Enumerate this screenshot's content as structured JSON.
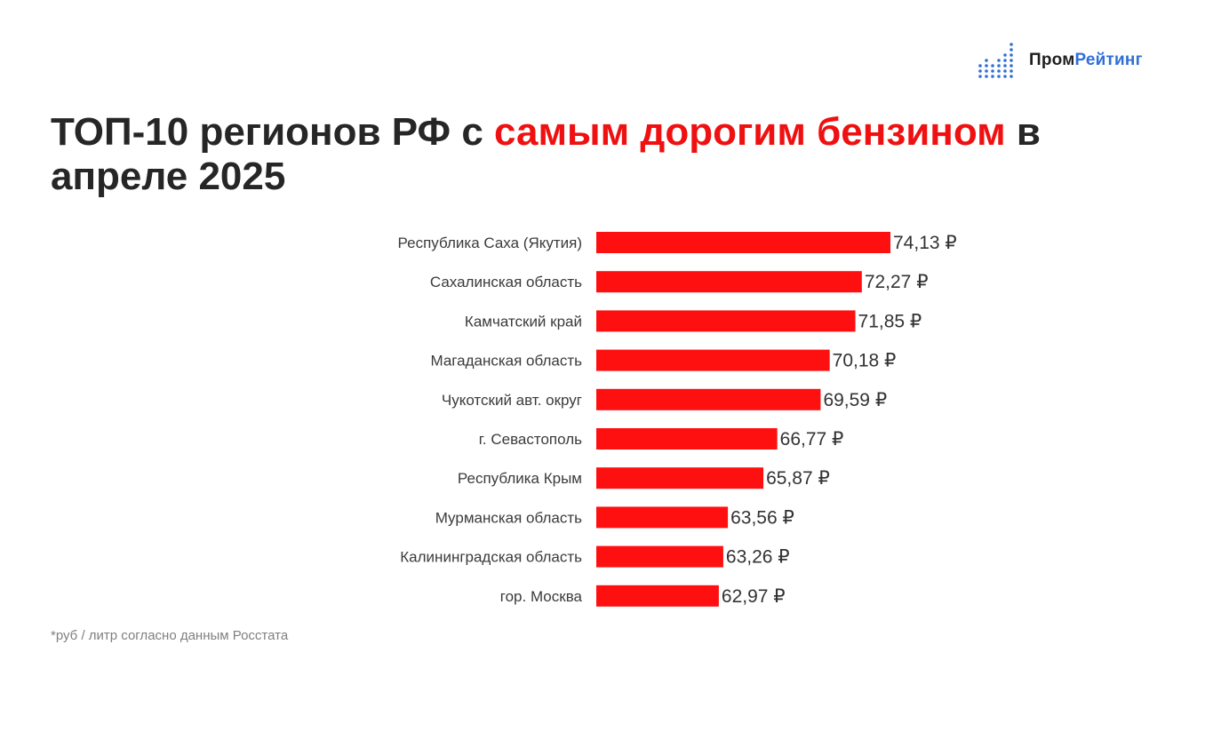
{
  "logo": {
    "part1": "Пром",
    "part2": "Рейтинг",
    "icon": "bar-dots-icon",
    "colors": {
      "dark": "#1f1f1f",
      "blue": "#2f6fd6"
    }
  },
  "title": {
    "part1": "ТОП-10 регионов РФ с ",
    "highlight": "самым дорогим бензином",
    "part2": " в апреле 2025"
  },
  "footnote": "*руб / литр согласно данным Росстата",
  "colors": {
    "bar": "#ff1010",
    "highlight": "#ef1111",
    "text": "#262626"
  },
  "chart_data": {
    "type": "bar",
    "orientation": "horizontal",
    "categories": [
      "Республика Саха (Якутия)",
      "Сахалинская область",
      "Камчатский край",
      "Магаданская область",
      "Чукотский авт. округ",
      "г. Севастополь",
      "Республика Крым",
      "Мурманская область",
      "Калининградская область",
      "гор. Москва"
    ],
    "values": [
      74.13,
      72.27,
      71.85,
      70.18,
      69.59,
      66.77,
      65.87,
      63.56,
      63.26,
      62.97
    ],
    "value_labels": [
      "74,13 ₽",
      "72,27 ₽",
      "71,85 ₽",
      "70,18 ₽",
      "69,59 ₽",
      "66,77 ₽",
      "65,87 ₽",
      "63,56 ₽",
      "63,26 ₽",
      "62,97 ₽"
    ],
    "grid": false,
    "legend": "none"
  }
}
